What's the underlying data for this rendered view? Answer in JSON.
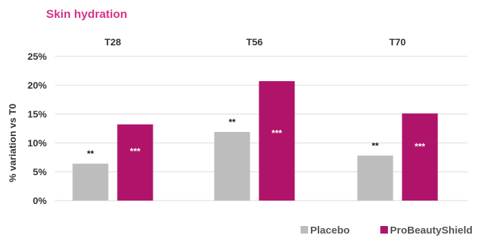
{
  "chart_data": {
    "type": "bar",
    "title": "Skin hydration",
    "categories": [
      "T28",
      "T56",
      "T70"
    ],
    "ylabel": "% variation vs T0",
    "ylim": [
      0,
      25
    ],
    "y_ticks": [
      0,
      5,
      10,
      15,
      20,
      25
    ],
    "y_tick_labels": [
      "0%",
      "5%",
      "10%",
      "15%",
      "20%",
      "25%"
    ],
    "grid": true,
    "legend_position": "bottom-right",
    "series": [
      {
        "name": "Placebo",
        "color": "#bdbdbd",
        "values": [
          6.4,
          11.9,
          7.8
        ],
        "significance": [
          "**",
          "**",
          "**"
        ],
        "significance_color": "#1a1a1a"
      },
      {
        "name": "ProBeautyShield",
        "color": "#b0146a",
        "values": [
          13.2,
          20.7,
          15.1
        ],
        "significance": [
          "***",
          "***",
          "***"
        ],
        "significance_color": "#ffffff"
      }
    ],
    "title_color": "#d63384"
  }
}
